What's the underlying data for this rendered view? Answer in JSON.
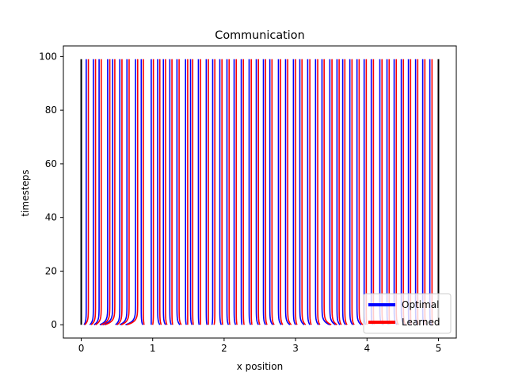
{
  "chart_data": {
    "type": "line",
    "title": "Communication",
    "xlabel": "x position",
    "ylabel": "timesteps",
    "xlim": [
      -0.25,
      5.25
    ],
    "ylim": [
      -4.95,
      103.95
    ],
    "xticks": [
      "0",
      "1",
      "2",
      "3",
      "4",
      "5"
    ],
    "yticks": [
      "0",
      "20",
      "40",
      "60",
      "80",
      "100"
    ],
    "grid": false,
    "legend_position": "bottom-right",
    "timesteps": [
      0,
      99
    ],
    "boundaries": {
      "color": "#000000",
      "x": [
        0.0,
        5.0
      ]
    },
    "series": [
      {
        "name": "Optimal",
        "color": "#0000ff",
        "final_x": [
          0.07,
          0.17,
          0.25,
          0.37,
          0.44,
          0.54,
          0.64,
          0.76,
          0.84,
          0.98,
          1.07,
          1.15,
          1.24,
          1.34,
          1.46,
          1.53,
          1.64,
          1.75,
          1.84,
          1.94,
          2.04,
          2.14,
          2.24,
          2.35,
          2.45,
          2.55,
          2.64,
          2.76,
          2.86,
          2.97,
          3.06,
          3.17,
          3.28,
          3.37,
          3.48,
          3.58,
          3.66,
          3.76,
          3.86,
          3.96,
          4.06,
          4.18,
          4.28,
          4.38,
          4.48,
          4.58,
          4.68,
          4.78,
          4.88
        ],
        "start_x": [
          0.04,
          0.12,
          0.18,
          0.26,
          0.3,
          0.48,
          0.54,
          0.62,
          0.86,
          0.98,
          1.1,
          1.18,
          1.26,
          1.38,
          1.47,
          1.55,
          1.65,
          1.76,
          1.83,
          1.96,
          2.06,
          2.16,
          2.25,
          2.37,
          2.48,
          2.58,
          2.68,
          2.8,
          2.92,
          3.0,
          3.12,
          3.2,
          3.32,
          3.48,
          3.56,
          3.62,
          3.7,
          3.8,
          3.92,
          3.98,
          4.08,
          4.22,
          4.3,
          4.42,
          4.52,
          4.6,
          4.7,
          4.8,
          4.9
        ]
      },
      {
        "name": "Learned",
        "color": "#ff0000",
        "final_x": [
          0.1,
          0.2,
          0.28,
          0.4,
          0.47,
          0.57,
          0.67,
          0.79,
          0.87,
          1.01,
          1.1,
          1.18,
          1.27,
          1.37,
          1.49,
          1.56,
          1.67,
          1.78,
          1.87,
          1.97,
          2.07,
          2.17,
          2.27,
          2.38,
          2.48,
          2.58,
          2.67,
          2.79,
          2.89,
          3.0,
          3.09,
          3.2,
          3.31,
          3.4,
          3.51,
          3.61,
          3.69,
          3.79,
          3.89,
          3.99,
          4.09,
          4.21,
          4.31,
          4.41,
          4.51,
          4.61,
          4.71,
          4.81,
          4.91
        ],
        "start_x": [
          0.05,
          0.14,
          0.2,
          0.28,
          0.33,
          0.5,
          0.56,
          0.64,
          0.88,
          1.0,
          1.12,
          1.2,
          1.28,
          1.4,
          1.49,
          1.57,
          1.67,
          1.78,
          1.86,
          1.98,
          2.08,
          2.18,
          2.28,
          2.39,
          2.5,
          2.6,
          2.7,
          2.82,
          2.94,
          3.02,
          3.14,
          3.22,
          3.34,
          3.5,
          3.58,
          3.64,
          3.72,
          3.82,
          3.94,
          4.0,
          4.1,
          4.24,
          4.32,
          4.44,
          4.54,
          4.62,
          4.72,
          4.82,
          4.92
        ]
      }
    ]
  }
}
